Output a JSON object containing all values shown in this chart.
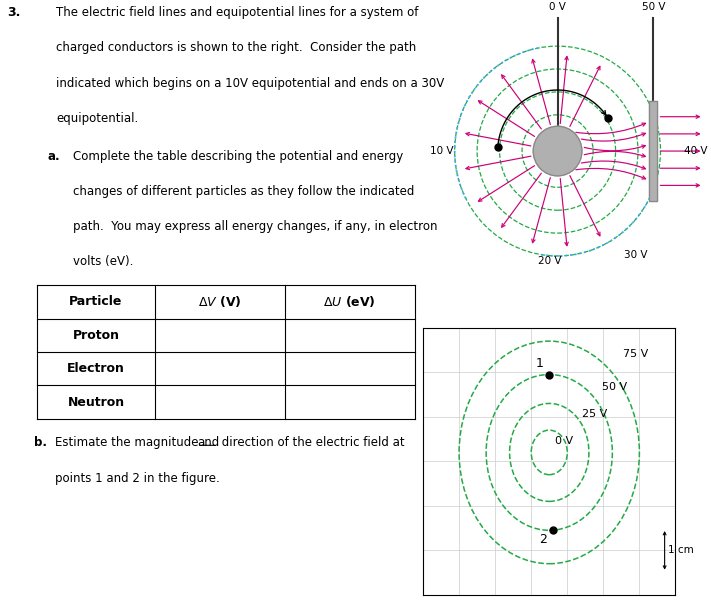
{
  "bg_color": "#ffffff",
  "magenta": "#cc0077",
  "cyan_dotted": "#44aaff",
  "green_dashed": "#22aa44",
  "gray_conductor": "#b0b0b0",
  "gray_conductor_dark": "#888888",
  "grid_color": "#cccccc",
  "font_size": 8.5,
  "font_size_bold": 9.0,
  "table_headers": [
    "Particle",
    "ΔV (V)",
    "ΔU (eV)"
  ],
  "table_rows": [
    "Proton",
    "Electron",
    "Neutron"
  ],
  "voltages_top": [
    "0 V",
    "50 V"
  ],
  "voltages_sides": [
    "10 V",
    "40 V"
  ],
  "voltages_bottom": [
    "20 V",
    "30 V"
  ],
  "circle_labels": [
    "75 V",
    "50 V",
    "25 V",
    "0 V"
  ]
}
